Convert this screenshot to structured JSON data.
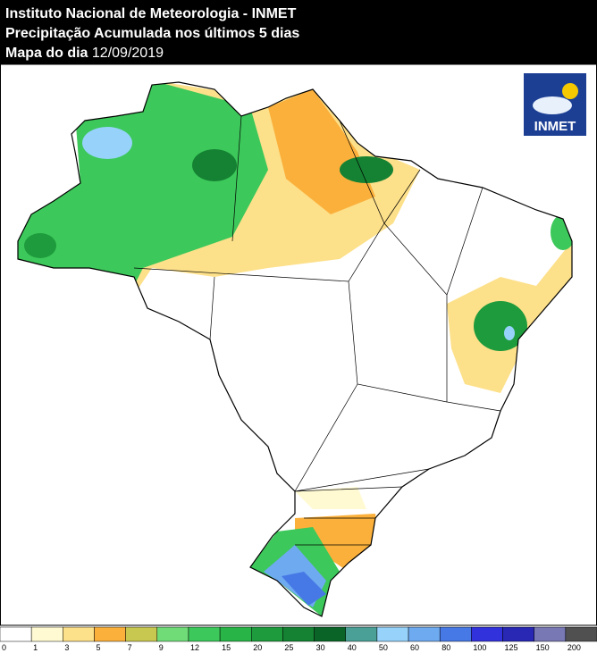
{
  "header": {
    "institute": "Instituto Nacional de Meteorologia - INMET",
    "product": "Precipitação Acumulada nos últimos 5 dias",
    "map_label": "Mapa do dia",
    "date": "12/09/2019"
  },
  "logo": {
    "text": "INMET"
  },
  "legend": {
    "thresholds": [
      0,
      1,
      3,
      5,
      7,
      9,
      12,
      15,
      20,
      25,
      30,
      40,
      50,
      60,
      80,
      100,
      125,
      150,
      200
    ],
    "colors": [
      "#ffffff",
      "#fffad2",
      "#fde08a",
      "#fbb03b",
      "#c8c850",
      "#6fdc78",
      "#3cc85a",
      "#28b446",
      "#1e9b3c",
      "#148232",
      "#0a6428",
      "#4aa096",
      "#96d2fa",
      "#6eaaf0",
      "#4678e6",
      "#3232dc",
      "#2828b4",
      "#7878b4",
      "#505050"
    ]
  }
}
